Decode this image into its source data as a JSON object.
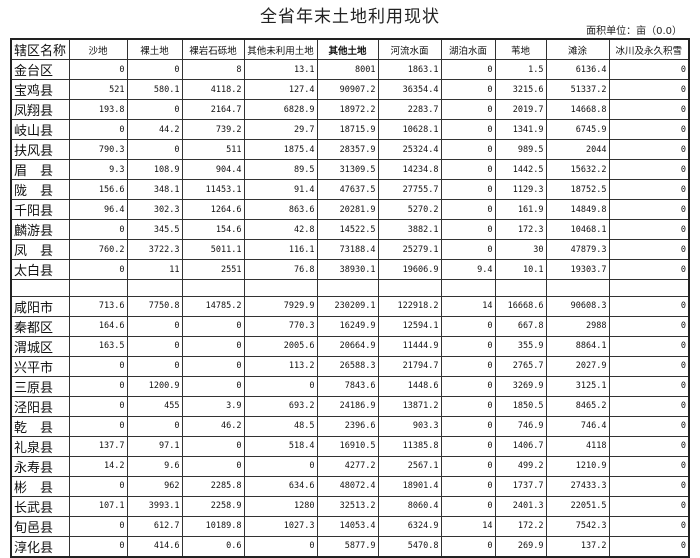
{
  "title": "全省年末土地利用现状",
  "unit": "面积单位：亩（0.0）",
  "headers": [
    "辖区名称",
    "沙地",
    "裸土地",
    "裸岩石砾地",
    "其他未利用土地",
    "其他土地",
    "河流水面",
    "湖泊水面",
    "苇地",
    "滩涂",
    "冰川及永久积雪"
  ],
  "rows": [
    [
      "金台区",
      "0",
      "0",
      "8",
      "13.1",
      "8001",
      "1863.1",
      "0",
      "1.5",
      "6136.4",
      "0"
    ],
    [
      "宝鸡县",
      "521",
      "580.1",
      "4118.2",
      "127.4",
      "90907.2",
      "36354.4",
      "0",
      "3215.6",
      "51337.2",
      "0"
    ],
    [
      "凤翔县",
      "193.8",
      "0",
      "2164.7",
      "6828.9",
      "18972.2",
      "2283.7",
      "0",
      "2019.7",
      "14668.8",
      "0"
    ],
    [
      "岐山县",
      "0",
      "44.2",
      "739.2",
      "29.7",
      "18715.9",
      "10628.1",
      "0",
      "1341.9",
      "6745.9",
      "0"
    ],
    [
      "扶风县",
      "790.3",
      "0",
      "511",
      "1875.4",
      "28357.9",
      "25324.4",
      "0",
      "989.5",
      "2044",
      "0"
    ],
    [
      "眉　县",
      "9.3",
      "108.9",
      "904.4",
      "89.5",
      "31309.5",
      "14234.8",
      "0",
      "1442.5",
      "15632.2",
      "0"
    ],
    [
      "陇　县",
      "156.6",
      "348.1",
      "11453.1",
      "91.4",
      "47637.5",
      "27755.7",
      "0",
      "1129.3",
      "18752.5",
      "0"
    ],
    [
      "千阳县",
      "96.4",
      "302.3",
      "1264.6",
      "863.6",
      "20281.9",
      "5270.2",
      "0",
      "161.9",
      "14849.8",
      "0"
    ],
    [
      "麟游县",
      "0",
      "345.5",
      "154.6",
      "42.8",
      "14522.5",
      "3882.1",
      "0",
      "172.3",
      "10468.1",
      "0"
    ],
    [
      "凤　县",
      "760.2",
      "3722.3",
      "5011.1",
      "116.1",
      "73188.4",
      "25279.1",
      "0",
      "30",
      "47879.3",
      "0"
    ],
    [
      "太白县",
      "0",
      "11",
      "2551",
      "76.8",
      "38930.1",
      "19606.9",
      "9.4",
      "10.1",
      "19303.7",
      "0"
    ],
    [
      "",
      "",
      "",
      "",
      "",
      "",
      "",
      "",
      "",
      "",
      ""
    ],
    [
      "咸阳市",
      "713.6",
      "7750.8",
      "14785.2",
      "7929.9",
      "230209.1",
      "122918.2",
      "14",
      "16668.6",
      "90608.3",
      "0"
    ],
    [
      "秦都区",
      "164.6",
      "0",
      "0",
      "770.3",
      "16249.9",
      "12594.1",
      "0",
      "667.8",
      "2988",
      "0"
    ],
    [
      "渭城区",
      "163.5",
      "0",
      "0",
      "2005.6",
      "20664.9",
      "11444.9",
      "0",
      "355.9",
      "8864.1",
      "0"
    ],
    [
      "兴平市",
      "0",
      "0",
      "0",
      "113.2",
      "26588.3",
      "21794.7",
      "0",
      "2765.7",
      "2027.9",
      "0"
    ],
    [
      "三原县",
      "0",
      "1200.9",
      "0",
      "0",
      "7843.6",
      "1448.6",
      "0",
      "3269.9",
      "3125.1",
      "0"
    ],
    [
      "泾阳县",
      "0",
      "455",
      "3.9",
      "693.2",
      "24186.9",
      "13871.2",
      "0",
      "1850.5",
      "8465.2",
      "0"
    ],
    [
      "乾　县",
      "0",
      "0",
      "46.2",
      "48.5",
      "2396.6",
      "903.3",
      "0",
      "746.9",
      "746.4",
      "0"
    ],
    [
      "礼泉县",
      "137.7",
      "97.1",
      "0",
      "518.4",
      "16910.5",
      "11385.8",
      "0",
      "1406.7",
      "4118",
      "0"
    ],
    [
      "永寿县",
      "14.2",
      "9.6",
      "0",
      "0",
      "4277.2",
      "2567.1",
      "0",
      "499.2",
      "1210.9",
      "0"
    ],
    [
      "彬　县",
      "0",
      "962",
      "2285.8",
      "634.6",
      "48072.4",
      "18901.4",
      "0",
      "1737.7",
      "27433.3",
      "0"
    ],
    [
      "长武县",
      "107.1",
      "3993.1",
      "2258.9",
      "1280",
      "32513.2",
      "8060.4",
      "0",
      "2401.3",
      "22051.5",
      "0"
    ],
    [
      "旬邑县",
      "0",
      "612.7",
      "10189.8",
      "1027.3",
      "14053.4",
      "6324.9",
      "14",
      "172.2",
      "7542.3",
      "0"
    ],
    [
      "淳化县",
      "0",
      "414.6",
      "0.6",
      "0",
      "5877.9",
      "5470.8",
      "0",
      "269.9",
      "137.2",
      "0"
    ]
  ]
}
